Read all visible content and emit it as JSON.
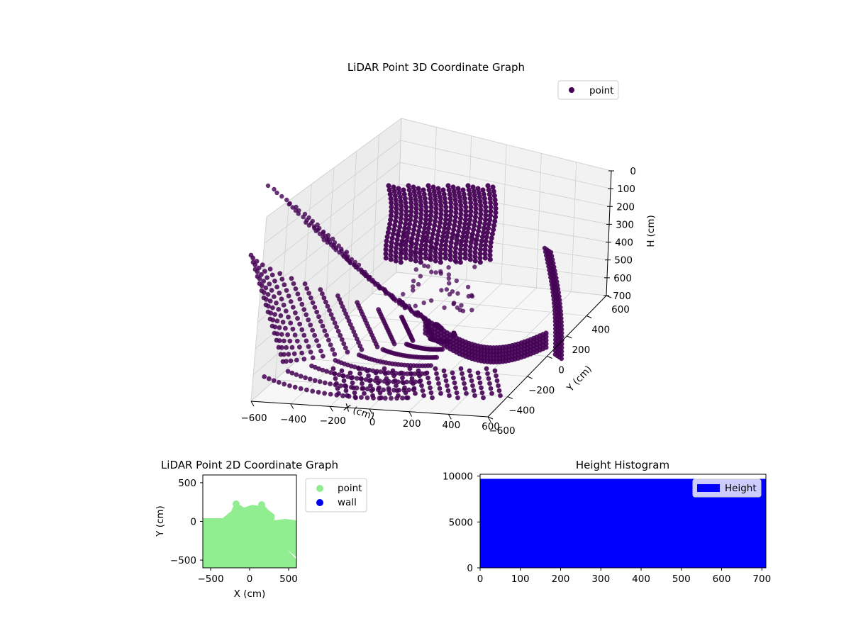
{
  "figure": {
    "background": "#ffffff"
  },
  "chart_data": [
    {
      "type": "scatter",
      "title": "LiDAR Point 3D Coordinate Graph",
      "xlabel": "X (cm)",
      "ylabel": "Y (cm)",
      "zlabel": "H (cm)",
      "x_ticks": [
        "−600",
        "−400",
        "−200",
        "0",
        "200",
        "400",
        "600"
      ],
      "y_ticks": [
        "−600",
        "−400",
        "−200",
        "0",
        "200",
        "400",
        "600"
      ],
      "z_ticks": [
        "0",
        "100",
        "200",
        "300",
        "400",
        "500",
        "600",
        "700"
      ],
      "xlim": [
        -600,
        600
      ],
      "ylim": [
        -600,
        600
      ],
      "zlim": [
        700,
        0
      ],
      "z_inverted": true,
      "grid": true,
      "legend": {
        "location": "upper right",
        "entries": [
          {
            "label": "point",
            "color": "#440154"
          }
        ]
      },
      "series": [
        {
          "name": "point",
          "color": "#440154"
        }
      ]
    },
    {
      "type": "scatter",
      "title": "LiDAR Point 2D Coordinate Graph",
      "xlabel": "X (cm)",
      "ylabel": "Y (cm)",
      "x_ticks": [
        "−500",
        "0",
        "500"
      ],
      "y_ticks": [
        "500",
        "0",
        "−500"
      ],
      "xlim": [
        -600,
        600
      ],
      "ylim": [
        -600,
        600
      ],
      "legend": {
        "location": "outside right",
        "entries": [
          {
            "label": "point",
            "color": "#90ee90"
          },
          {
            "label": "wall",
            "color": "#0000ee"
          }
        ]
      },
      "series": [
        {
          "name": "point",
          "color": "#90ee90"
        },
        {
          "name": "wall",
          "color": "#0000ee"
        }
      ]
    },
    {
      "type": "bar",
      "title": "Height Histogram",
      "x_ticks": [
        "0",
        "100",
        "200",
        "300",
        "400",
        "500",
        "600",
        "700"
      ],
      "y_ticks": [
        "0",
        "5000",
        "10000"
      ],
      "xlim": [
        0,
        710
      ],
      "ylim": [
        0,
        10200
      ],
      "bin_range": [
        0,
        710
      ],
      "bin_count_approx": 9700,
      "legend": {
        "location": "upper right",
        "entries": [
          {
            "label": "Height",
            "color": "#0000ff"
          }
        ]
      },
      "series": [
        {
          "name": "Height",
          "color": "#0000ff"
        }
      ]
    }
  ]
}
